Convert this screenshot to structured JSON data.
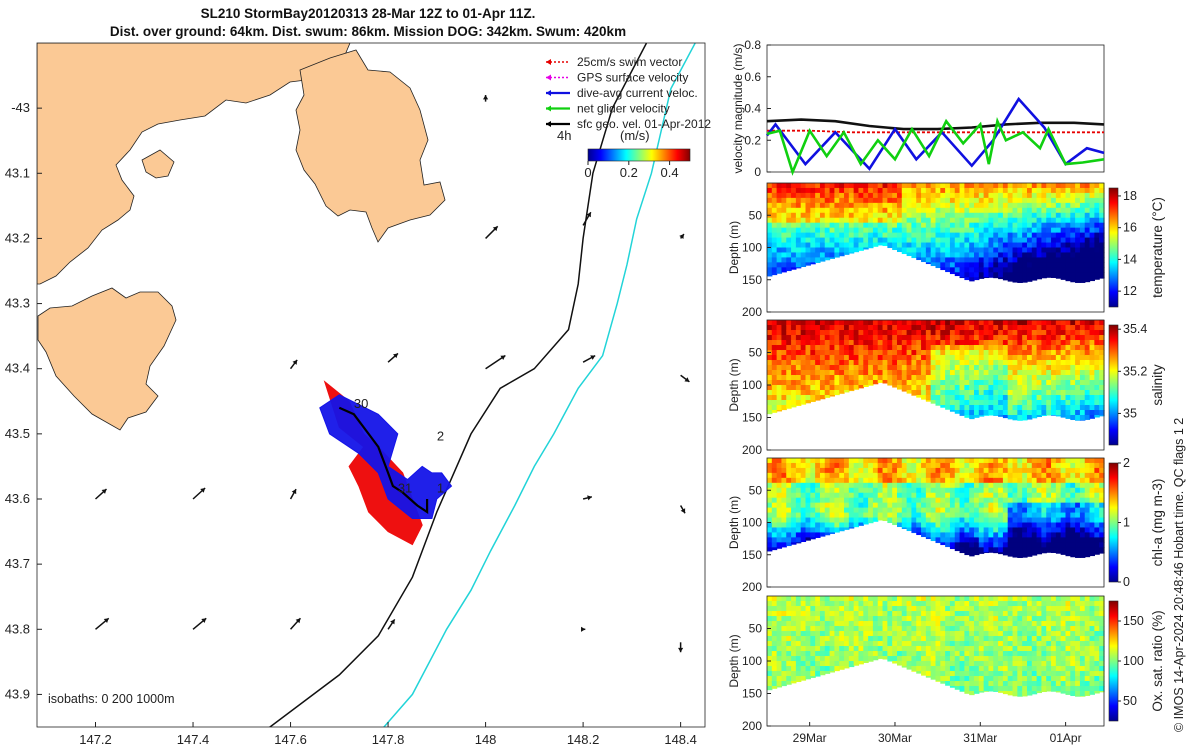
{
  "title": {
    "line1": "SL210 StormBay20120313 28-Mar 12Z to 01-Apr 11Z.",
    "line2": "Dist. over ground: 64km. Dist. swum: 86km. Mission DOG: 342km. Swum: 420km"
  },
  "stamp": "© IMOS 14-Apr-2024 20:48:46 Hobart time. QC flags 1  2",
  "chart_data": [
    {
      "type": "map",
      "id": "track-map",
      "xlim": [
        147.08,
        148.45
      ],
      "ylim": [
        -43.95,
        -42.9
      ],
      "x_ticks": [
        147.2,
        147.4,
        147.6,
        147.8,
        148,
        148.2,
        148.4
      ],
      "x_tick_labels": [
        "147.2",
        "147.4",
        "147.6",
        "147.8",
        "148",
        "148.2",
        "148.4"
      ],
      "y_ticks": [
        -43,
        -43.1,
        -43.2,
        -43.3,
        -43.4,
        -43.5,
        -43.6,
        -43.7,
        -43.8,
        -43.9
      ],
      "y_tick_labels": [
        "-43",
        "43.1",
        "43.2",
        "43.3",
        "43.4",
        "43.5",
        "43.6",
        "43.7",
        "43.8",
        "43.9"
      ],
      "isobath_label": "isobaths: 0   200  1000m",
      "legend": [
        {
          "label": "25cm/s swim vector",
          "color": "#e60000",
          "style": "dotted"
        },
        {
          "label": "GPS surface velocity",
          "color": "#e600e6",
          "style": "dotted"
        },
        {
          "label": "dive-avg current veloc.",
          "color": "#1010e0",
          "style": "solid"
        },
        {
          "label": "net glider velocity",
          "color": "#10d010",
          "style": "solid"
        },
        {
          "label": "sfc geo. vel. 01-Apr-2012",
          "color": "#000000",
          "style": "solid"
        }
      ],
      "colorbar": {
        "label": "(m/s)",
        "tag": "4h",
        "ticks": [
          0,
          0.2,
          0.4
        ],
        "tick_labels": [
          "0",
          "0.2",
          "0.4"
        ],
        "range": [
          0,
          0.5
        ]
      },
      "annotations": [
        {
          "text": "30",
          "lon": 147.73,
          "lat": -43.46
        },
        {
          "text": "2",
          "lon": 147.9,
          "lat": -43.51
        },
        {
          "text": "31",
          "lon": 147.82,
          "lat": -43.59
        },
        {
          "text": "1",
          "lon": 147.9,
          "lat": -43.59
        }
      ],
      "isobath_200m": [
        [
          147.54,
          -43.96
        ],
        [
          147.7,
          -43.87
        ],
        [
          147.78,
          -43.81
        ],
        [
          147.85,
          -43.72
        ],
        [
          147.9,
          -43.62
        ],
        [
          147.97,
          -43.5
        ],
        [
          148.03,
          -43.43
        ],
        [
          148.1,
          -43.4
        ],
        [
          148.17,
          -43.34
        ],
        [
          148.19,
          -43.27
        ],
        [
          148.2,
          -43.2
        ],
        [
          148.22,
          -43.1
        ],
        [
          148.26,
          -43.0
        ],
        [
          148.33,
          -42.9
        ]
      ],
      "isobath_1000m": [
        [
          147.78,
          -43.96
        ],
        [
          147.85,
          -43.9
        ],
        [
          147.92,
          -43.8
        ],
        [
          147.97,
          -43.74
        ],
        [
          148.01,
          -43.68
        ],
        [
          148.06,
          -43.61
        ],
        [
          148.1,
          -43.55
        ],
        [
          148.14,
          -43.5
        ],
        [
          148.19,
          -43.43
        ],
        [
          148.24,
          -43.38
        ],
        [
          148.27,
          -43.3
        ],
        [
          148.29,
          -43.24
        ],
        [
          148.31,
          -43.17
        ],
        [
          148.34,
          -43.1
        ],
        [
          148.38,
          -42.97
        ],
        [
          148.43,
          -42.9
        ]
      ],
      "geo_vectors": [
        {
          "lon": 148.0,
          "lat": -42.99,
          "u": 0.0,
          "v": 0.3
        },
        {
          "lon": 148.2,
          "lat": -43.18,
          "u": 0.35,
          "v": 0.6
        },
        {
          "lon": 148.4,
          "lat": -43.2,
          "u": 0.15,
          "v": 0.2
        },
        {
          "lon": 148.0,
          "lat": -43.2,
          "u": 0.55,
          "v": 0.55
        },
        {
          "lon": 147.6,
          "lat": -43.4,
          "u": 0.3,
          "v": 0.4
        },
        {
          "lon": 147.8,
          "lat": -43.39,
          "u": 0.45,
          "v": 0.4
        },
        {
          "lon": 148.0,
          "lat": -43.4,
          "u": 0.9,
          "v": 0.6
        },
        {
          "lon": 148.2,
          "lat": -43.39,
          "u": 0.55,
          "v": 0.3
        },
        {
          "lon": 148.4,
          "lat": -43.41,
          "u": 0.4,
          "v": -0.3
        },
        {
          "lon": 147.2,
          "lat": -43.6,
          "u": 0.5,
          "v": 0.45
        },
        {
          "lon": 147.4,
          "lat": -43.6,
          "u": 0.55,
          "v": 0.5
        },
        {
          "lon": 147.6,
          "lat": -43.6,
          "u": 0.25,
          "v": 0.45
        },
        {
          "lon": 148.2,
          "lat": -43.6,
          "u": 0.4,
          "v": 0.1
        },
        {
          "lon": 148.4,
          "lat": -43.61,
          "u": 0.2,
          "v": -0.35
        },
        {
          "lon": 147.2,
          "lat": -43.8,
          "u": 0.6,
          "v": 0.5
        },
        {
          "lon": 147.4,
          "lat": -43.8,
          "u": 0.6,
          "v": 0.5
        },
        {
          "lon": 147.6,
          "lat": -43.8,
          "u": 0.45,
          "v": 0.5
        },
        {
          "lon": 147.8,
          "lat": -43.8,
          "u": 0.3,
          "v": 0.45
        },
        {
          "lon": 148.2,
          "lat": -43.8,
          "u": 0.1,
          "v": 0.0
        },
        {
          "lon": 148.4,
          "lat": -43.82,
          "u": 0.0,
          "v": -0.45
        }
      ],
      "glider_track": [
        [
          147.7,
          -43.46
        ],
        [
          147.73,
          -43.47
        ],
        [
          147.76,
          -43.5
        ],
        [
          147.78,
          -43.52
        ],
        [
          147.8,
          -43.56
        ],
        [
          147.81,
          -43.58
        ],
        [
          147.83,
          -43.59
        ],
        [
          147.86,
          -43.61
        ],
        [
          147.88,
          -43.62
        ],
        [
          147.88,
          -43.6
        ]
      ],
      "current_polygon": [
        [
          147.66,
          -43.46
        ],
        [
          147.7,
          -43.44
        ],
        [
          147.78,
          -43.47
        ],
        [
          147.82,
          -43.5
        ],
        [
          147.8,
          -43.55
        ],
        [
          147.84,
          -43.57
        ],
        [
          147.87,
          -43.55
        ],
        [
          147.89,
          -43.56
        ],
        [
          147.91,
          -43.56
        ],
        [
          147.93,
          -43.58
        ],
        [
          147.9,
          -43.6
        ],
        [
          147.89,
          -43.63
        ],
        [
          147.85,
          -43.63
        ],
        [
          147.8,
          -43.6
        ],
        [
          147.78,
          -43.56
        ],
        [
          147.74,
          -43.53
        ],
        [
          147.68,
          -43.5
        ]
      ],
      "swim_polygon": [
        [
          147.67,
          -43.42
        ],
        [
          147.72,
          -43.45
        ],
        [
          147.75,
          -43.5
        ],
        [
          147.78,
          -43.52
        ],
        [
          147.83,
          -43.56
        ],
        [
          147.85,
          -43.6
        ],
        [
          147.87,
          -43.64
        ],
        [
          147.85,
          -43.67
        ],
        [
          147.8,
          -43.65
        ],
        [
          147.76,
          -43.62
        ],
        [
          147.74,
          -43.58
        ],
        [
          147.72,
          -43.55
        ],
        [
          147.75,
          -43.52
        ],
        [
          147.7,
          -43.49
        ]
      ]
    },
    {
      "type": "line",
      "id": "velocity",
      "ylabel": "velocity magnitude (m/s)",
      "ylim": [
        0,
        0.8
      ],
      "yticks": [
        0,
        0.2,
        0.4,
        0.6,
        0.8
      ],
      "x_days": [
        0,
        3.95
      ],
      "series": [
        {
          "name": "sfc geo. vel.",
          "color": "#111111",
          "x": [
            0,
            0.4,
            0.8,
            1.2,
            1.6,
            2.0,
            2.4,
            2.8,
            3.2,
            3.6,
            3.95
          ],
          "values": [
            0.32,
            0.33,
            0.32,
            0.29,
            0.27,
            0.27,
            0.28,
            0.3,
            0.31,
            0.31,
            0.3
          ]
        },
        {
          "name": "swim vector",
          "color": "#e60000",
          "x": [
            0,
            0.5,
            1.0,
            1.5,
            2.0,
            2.5,
            3.0,
            3.5,
            3.95
          ],
          "values": [
            0.26,
            0.26,
            0.25,
            0.25,
            0.25,
            0.25,
            0.25,
            0.25,
            0.25
          ]
        },
        {
          "name": "dive-avg current",
          "color": "#1010e0",
          "x": [
            0,
            0.1,
            0.45,
            0.8,
            1.2,
            1.5,
            1.75,
            2.05,
            2.4,
            2.65,
            2.95,
            3.25,
            3.5,
            3.75,
            3.95
          ],
          "values": [
            0.23,
            0.3,
            0.05,
            0.25,
            0.02,
            0.27,
            0.08,
            0.25,
            0.04,
            0.2,
            0.46,
            0.28,
            0.05,
            0.15,
            0.12
          ]
        },
        {
          "name": "net glider",
          "color": "#10d010",
          "x": [
            0,
            0.15,
            0.3,
            0.5,
            0.7,
            0.9,
            1.1,
            1.3,
            1.5,
            1.7,
            1.9,
            2.1,
            2.3,
            2.5,
            2.6,
            2.7,
            2.8,
            3.0,
            3.2,
            3.3,
            3.5,
            3.7,
            3.95
          ],
          "values": [
            0.24,
            0.26,
            0.0,
            0.26,
            0.1,
            0.25,
            0.05,
            0.2,
            0.08,
            0.27,
            0.1,
            0.32,
            0.18,
            0.3,
            0.05,
            0.32,
            0.2,
            0.25,
            0.15,
            0.27,
            0.05,
            0.06,
            0.08
          ]
        }
      ]
    },
    {
      "type": "heatmap",
      "id": "temperature",
      "ylabel": "Depth (m)",
      "colorbar_label": "temperature (°C)",
      "range": [
        11,
        18.5
      ],
      "colorbar_ticks": [
        12,
        14,
        16,
        18
      ],
      "depth_ticks": [
        50,
        100,
        150,
        200
      ],
      "ylim": [
        0,
        200
      ],
      "x_tick_labels": [
        "29Mar",
        "30Mar",
        "31Mar",
        "01Apr"
      ],
      "x_tick_days": [
        0.5,
        1.5,
        2.5,
        3.5
      ]
    },
    {
      "type": "heatmap",
      "id": "salinity",
      "ylabel": "Depth (m)",
      "colorbar_label": "salinity",
      "range": [
        34.85,
        35.42
      ],
      "colorbar_ticks": [
        35,
        35.2,
        35.4
      ],
      "depth_ticks": [
        50,
        100,
        150,
        200
      ],
      "ylim": [
        0,
        200
      ]
    },
    {
      "type": "heatmap",
      "id": "chla",
      "ylabel": "Depth (m)",
      "colorbar_label": "chl-a (mg m-3)",
      "range": [
        0,
        2
      ],
      "colorbar_ticks": [
        0,
        1,
        2
      ],
      "depth_ticks": [
        50,
        100,
        150,
        200
      ],
      "ylim": [
        0,
        200
      ]
    },
    {
      "type": "heatmap",
      "id": "oxygen",
      "ylabel": "Depth (m)",
      "colorbar_label": "Ox. sat. ratio (%)",
      "range": [
        25,
        175
      ],
      "colorbar_ticks": [
        50,
        100,
        150
      ],
      "depth_ticks": [
        50,
        100,
        150,
        200
      ],
      "ylim": [
        0,
        200
      ]
    }
  ]
}
